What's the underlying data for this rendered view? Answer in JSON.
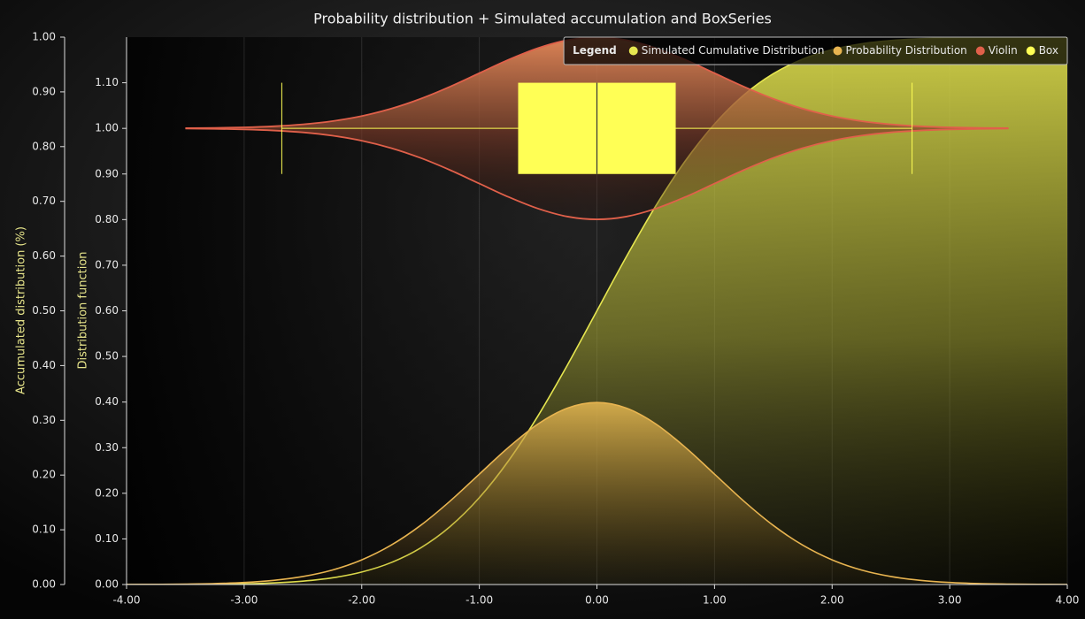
{
  "chart_data": {
    "type": "area",
    "title": "Probability distribution + Simulated accumulation and BoxSeries",
    "legend_title": "Legend",
    "legend_position": "top-right",
    "x": [
      -4,
      -3.75,
      -3.5,
      -3.25,
      -3,
      -2.75,
      -2.5,
      -2.25,
      -2,
      -1.75,
      -1.5,
      -1.25,
      -1,
      -0.75,
      -0.5,
      -0.25,
      0,
      0.25,
      0.5,
      0.75,
      1,
      1.25,
      1.5,
      1.75,
      2,
      2.25,
      2.5,
      2.75,
      3,
      3.25,
      3.5,
      3.75,
      4
    ],
    "xlim": [
      -4,
      4
    ],
    "xticks": [
      {
        "value": -4,
        "label": "-4.00"
      },
      {
        "value": -3,
        "label": "-3.00"
      },
      {
        "value": -2,
        "label": "-2.00"
      },
      {
        "value": -1,
        "label": "-1.00"
      },
      {
        "value": 0,
        "label": "0.00"
      },
      {
        "value": 1,
        "label": "1.00"
      },
      {
        "value": 2,
        "label": "2.00"
      },
      {
        "value": 3,
        "label": "3.00"
      },
      {
        "value": 4,
        "label": "4.00"
      }
    ],
    "ylabel": "Accumulated distribution (%)",
    "ylim": [
      0,
      1
    ],
    "yticks": [
      {
        "value": 0,
        "label": "0.00"
      },
      {
        "value": 0.1,
        "label": "0.10"
      },
      {
        "value": 0.2,
        "label": "0.20"
      },
      {
        "value": 0.3,
        "label": "0.30"
      },
      {
        "value": 0.4,
        "label": "0.40"
      },
      {
        "value": 0.5,
        "label": "0.50"
      },
      {
        "value": 0.6,
        "label": "0.60"
      },
      {
        "value": 0.7,
        "label": "0.70"
      },
      {
        "value": 0.8,
        "label": "0.80"
      },
      {
        "value": 0.9,
        "label": "0.90"
      },
      {
        "value": 1,
        "label": "1.00"
      }
    ],
    "y2label": "Distribution function",
    "y2lim": [
      0,
      1.2
    ],
    "y2ticks": [
      {
        "value": 0,
        "label": "0.00"
      },
      {
        "value": 0.1,
        "label": "0.10"
      },
      {
        "value": 0.2,
        "label": "0.20"
      },
      {
        "value": 0.3,
        "label": "0.30"
      },
      {
        "value": 0.4,
        "label": "0.40"
      },
      {
        "value": 0.5,
        "label": "0.50"
      },
      {
        "value": 0.6,
        "label": "0.60"
      },
      {
        "value": 0.7,
        "label": "0.70"
      },
      {
        "value": 0.8,
        "label": "0.80"
      },
      {
        "value": 0.9,
        "label": "0.90"
      },
      {
        "value": 1,
        "label": "1.00"
      },
      {
        "value": 1.1,
        "label": "1.10"
      }
    ],
    "series": [
      {
        "name": "Simulated Cumulative Distribution",
        "color": "#e6e650",
        "values": [
          0,
          0.0001,
          0.0002,
          0.0006,
          0.0013,
          0.003,
          0.0062,
          0.0122,
          0.0228,
          0.0401,
          0.0668,
          0.1056,
          0.1587,
          0.2266,
          0.3085,
          0.4013,
          0.5,
          0.5987,
          0.6915,
          0.7734,
          0.8413,
          0.8944,
          0.9332,
          0.9599,
          0.9772,
          0.9878,
          0.9938,
          0.997,
          0.9987,
          0.9994,
          0.9998,
          0.9999,
          1
        ]
      },
      {
        "name": "Probability Distribution",
        "color": "#e8b450",
        "axis": "y2",
        "values": [
          0.0001,
          0.0004,
          0.0009,
          0.002,
          0.0044,
          0.0091,
          0.0175,
          0.0317,
          0.054,
          0.0863,
          0.1295,
          0.1826,
          0.242,
          0.3011,
          0.3521,
          0.3867,
          0.3989,
          0.3867,
          0.3521,
          0.3011,
          0.242,
          0.1826,
          0.1295,
          0.0863,
          0.054,
          0.0317,
          0.0175,
          0.0091,
          0.0044,
          0.002,
          0.0009,
          0.0004,
          0.0001
        ]
      }
    ],
    "violin": {
      "name": "Violin",
      "color": "#e0604a",
      "axis": "y2",
      "center": 1.0,
      "x": [
        -3.5,
        -3.25,
        -3,
        -2.75,
        -2.5,
        -2.25,
        -2,
        -1.75,
        -1.5,
        -1.25,
        -1,
        -0.75,
        -0.5,
        -0.25,
        0,
        0.25,
        0.5,
        0.75,
        1,
        1.25,
        1.5,
        1.75,
        2,
        2.25,
        2.5,
        2.75,
        3,
        3.25,
        3.5
      ],
      "values": [
        0.0004,
        0.001,
        0.0022,
        0.0046,
        0.0088,
        0.0159,
        0.027,
        0.0432,
        0.0648,
        0.0913,
        0.121,
        0.1506,
        0.176,
        0.1934,
        0.1995,
        0.1934,
        0.176,
        0.1506,
        0.121,
        0.0913,
        0.0648,
        0.0432,
        0.027,
        0.0159,
        0.0088,
        0.0046,
        0.0022,
        0.001,
        0.0004
      ]
    },
    "box": {
      "name": "Box",
      "color": "#ffff55",
      "axis": "y2",
      "lower_whisker": -2.68,
      "q1": -0.67,
      "median": 0,
      "q3": 0.67,
      "upper_whisker": 2.68,
      "y_low": 0.9,
      "y_high": 1.1
    }
  }
}
